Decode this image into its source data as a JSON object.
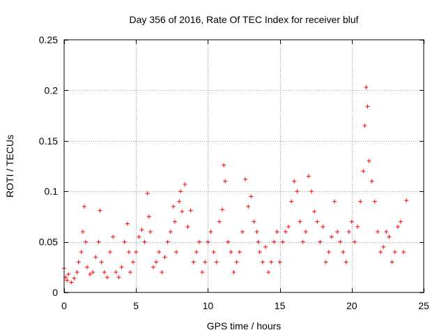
{
  "chart_data": {
    "type": "scatter",
    "title": "Day 356 of 2016, Rate Of TEC Index for receiver bluf",
    "xlabel": "GPS time / hours",
    "ylabel": "ROTI / TECUs",
    "xlim": [
      0,
      25
    ],
    "ylim": [
      0,
      0.25
    ],
    "xticks": [
      0,
      5,
      10,
      15,
      20,
      25
    ],
    "xtick_labels": [
      "0",
      "5",
      "10",
      "15",
      "20",
      "25"
    ],
    "yticks": [
      0,
      0.05,
      0.1,
      0.15,
      0.2,
      0.25
    ],
    "ytick_labels": [
      "0",
      "0.05",
      "0.1",
      "0.15",
      "0.2",
      "0.25"
    ],
    "grid": true,
    "marker": "+",
    "marker_color": "#ff0000",
    "series": [
      {
        "name": "ROTI",
        "x": [
          0.0,
          0.1,
          0.2,
          0.3,
          0.5,
          0.7,
          0.9,
          1.0,
          1.2,
          1.3,
          1.4,
          1.5,
          1.6,
          1.8,
          2.0,
          2.2,
          2.4,
          2.5,
          2.6,
          2.8,
          3.0,
          3.2,
          3.4,
          3.6,
          3.8,
          4.0,
          4.2,
          4.4,
          4.5,
          4.6,
          4.8,
          5.0,
          5.2,
          5.4,
          5.6,
          5.8,
          5.9,
          6.0,
          6.2,
          6.4,
          6.6,
          6.8,
          7.0,
          7.2,
          7.4,
          7.6,
          7.7,
          7.8,
          8.0,
          8.1,
          8.2,
          8.4,
          8.6,
          8.8,
          9.0,
          9.2,
          9.4,
          9.6,
          9.8,
          10.0,
          10.2,
          10.4,
          10.6,
          10.8,
          11.0,
          11.1,
          11.2,
          11.4,
          11.6,
          11.8,
          12.0,
          12.2,
          12.4,
          12.6,
          12.8,
          13.0,
          13.2,
          13.4,
          13.5,
          13.6,
          13.8,
          14.0,
          14.2,
          14.4,
          14.6,
          14.8,
          15.0,
          15.2,
          15.4,
          15.6,
          15.8,
          16.0,
          16.2,
          16.4,
          16.6,
          16.8,
          17.0,
          17.2,
          17.4,
          17.6,
          17.8,
          18.0,
          18.2,
          18.4,
          18.6,
          18.8,
          19.0,
          19.2,
          19.4,
          19.6,
          19.8,
          20.0,
          20.2,
          20.4,
          20.6,
          20.8,
          20.9,
          21.0,
          21.1,
          21.2,
          21.4,
          21.6,
          21.8,
          22.0,
          22.2,
          22.4,
          22.6,
          22.8,
          23.0,
          23.2,
          23.4,
          23.6,
          23.8
        ],
        "y": [
          0.024,
          0.015,
          0.012,
          0.018,
          0.01,
          0.014,
          0.02,
          0.03,
          0.04,
          0.06,
          0.085,
          0.05,
          0.025,
          0.018,
          0.02,
          0.035,
          0.05,
          0.081,
          0.03,
          0.02,
          0.015,
          0.04,
          0.055,
          0.02,
          0.015,
          0.025,
          0.05,
          0.068,
          0.04,
          0.02,
          0.03,
          0.04,
          0.055,
          0.062,
          0.05,
          0.098,
          0.075,
          0.06,
          0.025,
          0.03,
          0.04,
          0.02,
          0.035,
          0.05,
          0.06,
          0.085,
          0.07,
          0.04,
          0.09,
          0.1,
          0.08,
          0.107,
          0.065,
          0.081,
          0.03,
          0.04,
          0.05,
          0.02,
          0.03,
          0.05,
          0.06,
          0.04,
          0.03,
          0.07,
          0.082,
          0.126,
          0.11,
          0.05,
          0.04,
          0.02,
          0.03,
          0.04,
          0.06,
          0.112,
          0.085,
          0.095,
          0.07,
          0.06,
          0.05,
          0.04,
          0.03,
          0.045,
          0.02,
          0.03,
          0.05,
          0.06,
          0.03,
          0.05,
          0.06,
          0.065,
          0.09,
          0.11,
          0.1,
          0.07,
          0.05,
          0.06,
          0.115,
          0.1,
          0.08,
          0.07,
          0.05,
          0.065,
          0.03,
          0.04,
          0.055,
          0.09,
          0.06,
          0.05,
          0.04,
          0.03,
          0.06,
          0.07,
          0.05,
          0.065,
          0.09,
          0.12,
          0.165,
          0.203,
          0.184,
          0.13,
          0.11,
          0.09,
          0.06,
          0.04,
          0.045,
          0.06,
          0.055,
          0.03,
          0.04,
          0.065,
          0.07,
          0.04,
          0.091
        ]
      }
    ]
  }
}
